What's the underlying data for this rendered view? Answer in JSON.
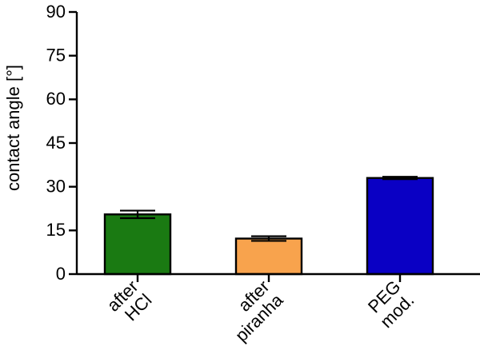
{
  "chart_data": {
    "type": "bar",
    "title": "",
    "xlabel": "",
    "ylabel": "contact angle [°]",
    "ylim": [
      0,
      90
    ],
    "yticks": [
      0,
      15,
      30,
      45,
      60,
      75,
      90
    ],
    "grid": false,
    "categories": [
      {
        "lines": [
          "after",
          "HCl"
        ]
      },
      {
        "lines": [
          "after",
          "piranha"
        ]
      },
      {
        "lines": [
          "PEG",
          "mod."
        ]
      }
    ],
    "values": [
      20.5,
      12.2,
      33.0
    ],
    "errors": [
      1.3,
      0.8,
      0.4
    ],
    "colors": [
      "#1a7a12",
      "#f8a34d",
      "#0a00c4"
    ]
  }
}
